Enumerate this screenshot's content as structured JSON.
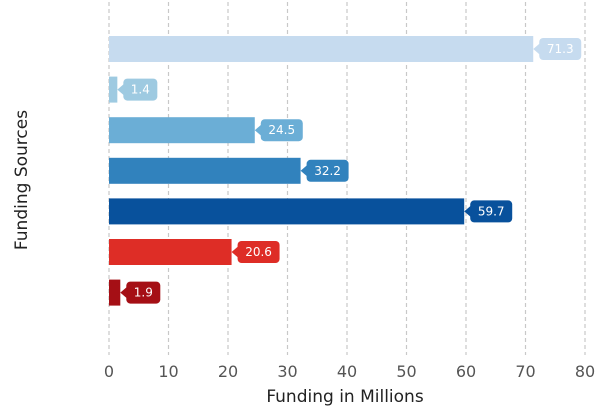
{
  "chart_data": {
    "type": "bar",
    "orientation": "horizontal",
    "title": "",
    "xlabel": "Funding in Millions",
    "ylabel": "Funding Sources",
    "xlim": [
      0,
      80
    ],
    "xticks": [
      0,
      10,
      20,
      30,
      40,
      50,
      60,
      70,
      80
    ],
    "grid": "vertical-dashed",
    "legend": "none",
    "values": [
      71.3,
      1.4,
      24.5,
      32.2,
      59.7,
      20.6,
      1.9
    ],
    "labels": [
      "71.3",
      "1.4",
      "24.5",
      "32.2",
      "59.7",
      "20.6",
      "1.9"
    ],
    "colors": [
      "#c6dbef",
      "#9ecae1",
      "#6baed6",
      "#3182bd",
      "#08519c",
      "#de2d26",
      "#a50f15"
    ]
  }
}
